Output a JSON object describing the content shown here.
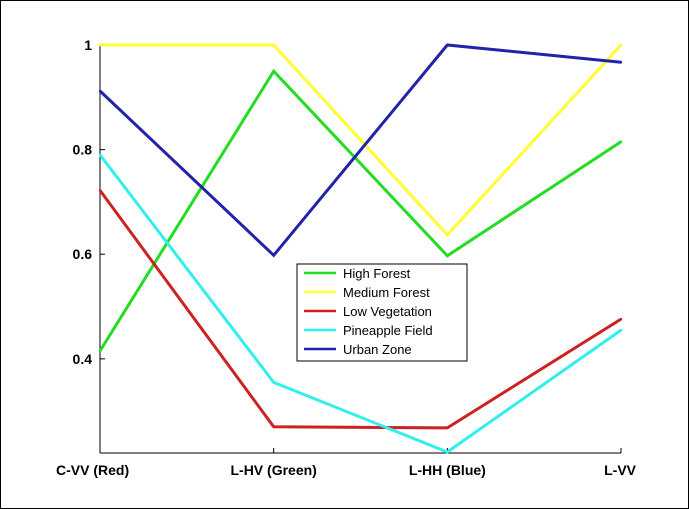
{
  "chart_data": {
    "type": "line",
    "categories": [
      "C-VV (Red)",
      "L-HV (Green)",
      "L-HH (Blue)",
      "L-VV"
    ],
    "ylim": [
      0.22,
      1.0
    ],
    "yticks": [
      0.4,
      0.6,
      0.8,
      1
    ],
    "ytick_labels": [
      "0.4",
      "0.6",
      "0.8",
      "1"
    ],
    "grid": false,
    "legend_position": "center",
    "series": [
      {
        "name": "High Forest",
        "color": "#22dd22",
        "values": [
          0.415,
          0.95,
          0.597,
          0.815
        ]
      },
      {
        "name": "Medium Forest",
        "color": "#ffff33",
        "values": [
          1.0,
          1.0,
          0.637,
          1.0
        ]
      },
      {
        "name": "Low Vegetation",
        "color": "#cc2222",
        "values": [
          0.722,
          0.27,
          0.268,
          0.476
        ]
      },
      {
        "name": "Pineapple Field",
        "color": "#33eeee",
        "values": [
          0.79,
          0.355,
          0.222,
          0.455
        ]
      },
      {
        "name": "Urban Zone",
        "color": "#2222aa",
        "values": [
          0.912,
          0.598,
          1.0,
          0.967
        ]
      }
    ]
  }
}
